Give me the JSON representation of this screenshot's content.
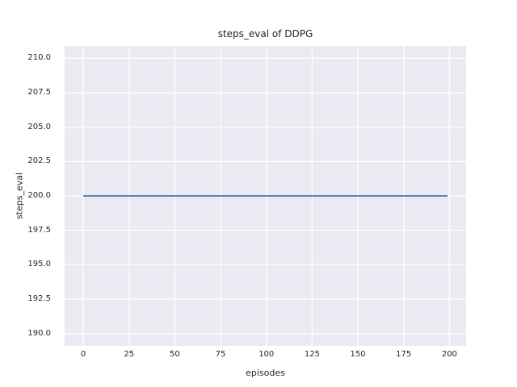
{
  "chart_data": {
    "type": "line",
    "title": "steps_eval of DDPG",
    "xlabel": "episodes",
    "ylabel": "steps_eval",
    "xlim": [
      -10.2,
      209.1
    ],
    "ylim": [
      189.1,
      210.9
    ],
    "xticks": [
      0,
      25,
      50,
      75,
      100,
      125,
      150,
      175,
      200
    ],
    "yticks": [
      190.0,
      192.5,
      195.0,
      197.5,
      200.0,
      202.5,
      205.0,
      207.5,
      210.0
    ],
    "ytick_decimals": 1,
    "grid": true,
    "legend": "none",
    "series": [
      {
        "name": "DDPG",
        "color": "#4c72b0",
        "x": [
          0,
          199
        ],
        "y": [
          200.0,
          200.0
        ]
      }
    ]
  },
  "colors": {
    "figure_background": "#ffffff",
    "axes_background": "#eaeaf2",
    "gridline": "#ffffff",
    "text": "#262626",
    "line": "#4c72b0"
  }
}
